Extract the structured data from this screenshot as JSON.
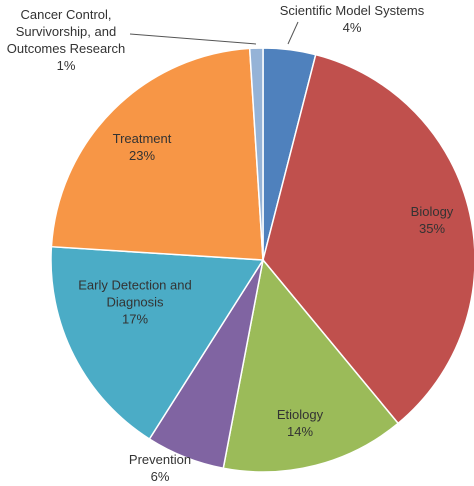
{
  "chart_data": {
    "type": "pie",
    "categories": [
      "Scientific Model Systems",
      "Biology",
      "Etiology",
      "Prevention",
      "Early Detection and Diagnosis",
      "Treatment",
      "Cancer Control, Survivorship, and Outcomes Research"
    ],
    "values": [
      4,
      35,
      14,
      6,
      17,
      23,
      1
    ],
    "value_labels": [
      "4%",
      "35%",
      "14%",
      "6%",
      "17%",
      "23%",
      "1%"
    ],
    "colors": [
      "#4f81bd",
      "#c0504d",
      "#9bbb59",
      "#8064a2",
      "#4bacc6",
      "#f79646",
      "#95b3d7"
    ]
  }
}
